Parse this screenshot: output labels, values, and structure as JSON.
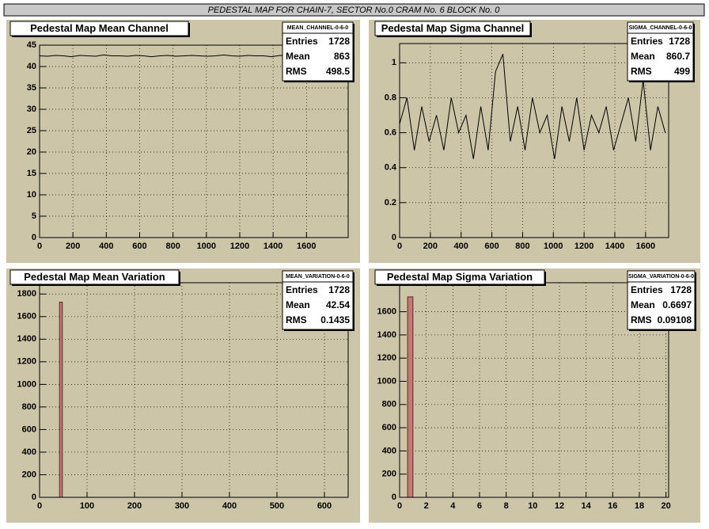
{
  "canvas_title": "PEDESTAL MAP FOR CHAIN-7, SECTOR No.0 CRAM No. 6 BLOCK No. 0",
  "chart_data": [
    {
      "type": "line",
      "title": "Pedestal Map Mean Channel",
      "color": "#000000",
      "grid": true,
      "x": [
        0,
        48,
        96,
        144,
        192,
        240,
        288,
        336,
        384,
        432,
        480,
        528,
        576,
        624,
        672,
        720,
        768,
        816,
        864,
        912,
        960,
        1008,
        1056,
        1104,
        1152,
        1200,
        1248,
        1296,
        1344,
        1392,
        1440,
        1488,
        1536,
        1584,
        1632,
        1680,
        1728
      ],
      "values": [
        42.5,
        42.4,
        42.6,
        42.5,
        42.3,
        42.6,
        42.5,
        42.4,
        42.7,
        42.5,
        42.5,
        42.4,
        42.6,
        42.5,
        42.3,
        42.5,
        42.6,
        42.4,
        42.5,
        42.6,
        42.5,
        42.4,
        42.5,
        42.7,
        42.5,
        42.4,
        42.6,
        42.5,
        42.5,
        42.3,
        42.6,
        42.5,
        42.4,
        42.5,
        42.6,
        42.5,
        42.4
      ],
      "xlim": [
        0,
        1850
      ],
      "xticks": [
        0,
        200,
        400,
        600,
        800,
        1000,
        1200,
        1400,
        1600
      ],
      "ylim": [
        0,
        45
      ],
      "yticks": [
        0,
        5,
        10,
        15,
        20,
        25,
        30,
        35,
        40,
        45
      ],
      "stats": {
        "name": "MEAN_CHANNEL-0-6-0",
        "rows": [
          {
            "label": "Entries",
            "value": 1728
          },
          {
            "label": "Mean",
            "value": 863
          },
          {
            "label": "RMS",
            "value": 498.5
          }
        ]
      }
    },
    {
      "type": "line",
      "title": "Pedestal Map Sigma Channel",
      "color": "#000000",
      "grid": true,
      "x": [
        0,
        48,
        96,
        144,
        192,
        240,
        288,
        336,
        384,
        432,
        480,
        528,
        576,
        624,
        672,
        720,
        768,
        816,
        864,
        912,
        960,
        1008,
        1056,
        1104,
        1152,
        1200,
        1248,
        1296,
        1344,
        1392,
        1440,
        1488,
        1536,
        1584,
        1632,
        1680,
        1728
      ],
      "values": [
        0.65,
        0.8,
        0.5,
        0.75,
        0.55,
        0.7,
        0.5,
        0.8,
        0.6,
        0.7,
        0.45,
        0.75,
        0.5,
        0.95,
        1.05,
        0.55,
        0.75,
        0.5,
        0.8,
        0.6,
        0.7,
        0.45,
        0.75,
        0.55,
        0.8,
        0.5,
        0.7,
        0.6,
        0.75,
        0.5,
        0.65,
        0.8,
        0.55,
        0.9,
        0.5,
        0.75,
        0.6
      ],
      "xlim": [
        0,
        1750
      ],
      "xticks": [
        0,
        200,
        400,
        600,
        800,
        1000,
        1200,
        1400,
        1600
      ],
      "ylim": [
        0,
        1.11
      ],
      "yticks": [
        0,
        0.2,
        0.4,
        0.6,
        0.8,
        1
      ],
      "stats": {
        "name": "SIGMA_CHANNEL-0-6-0",
        "rows": [
          {
            "label": "Entries",
            "value": 1728
          },
          {
            "label": "Mean",
            "value": 860.7
          },
          {
            "label": "RMS",
            "value": 499
          }
        ]
      }
    },
    {
      "type": "histogram",
      "title": "Pedestal Map Mean Variation",
      "color": "#c47a72",
      "grid": true,
      "bins": [
        42,
        48
      ],
      "values": [
        1728
      ],
      "xlim": [
        0,
        650
      ],
      "xticks": [
        0,
        100,
        200,
        300,
        400,
        500,
        600
      ],
      "ylim": [
        0,
        1900
      ],
      "yticks": [
        0,
        200,
        400,
        600,
        800,
        1000,
        1200,
        1400,
        1600,
        1800
      ],
      "stats": {
        "name": "MEAN_VARIATION-0-6-0",
        "rows": [
          {
            "label": "Entries",
            "value": 1728
          },
          {
            "label": "Mean",
            "value": 42.54
          },
          {
            "label": "RMS",
            "value": 0.1435
          }
        ]
      }
    },
    {
      "type": "histogram",
      "title": "Pedestal Map Sigma Variation",
      "color": "#c47a72",
      "grid": true,
      "bins": [
        0.6,
        1
      ],
      "values": [
        1728
      ],
      "xlim": [
        0,
        20.2
      ],
      "xticks": [
        0,
        2,
        4,
        6,
        8,
        10,
        12,
        14,
        16,
        18,
        20
      ],
      "ylim": [
        0,
        1850
      ],
      "yticks": [
        0,
        200,
        400,
        600,
        800,
        1000,
        1200,
        1400,
        1600
      ],
      "stats": {
        "name": "SIGMA_VARIATION-0-6-0",
        "rows": [
          {
            "label": "Entries",
            "value": 1728
          },
          {
            "label": "Mean",
            "value": 0.6697
          },
          {
            "label": "RMS",
            "value": 0.09108
          }
        ]
      }
    }
  ]
}
